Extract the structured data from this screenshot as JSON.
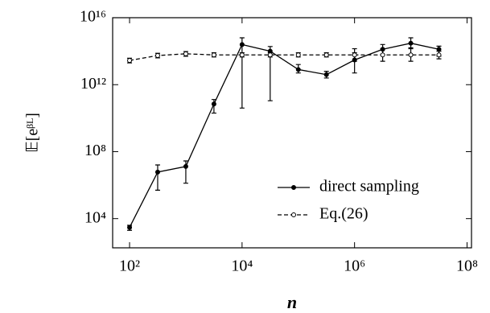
{
  "chart_data": {
    "type": "line",
    "xlabel": "n",
    "ylabel": "𝔼[eᵝᴸ]",
    "xscale": "log",
    "yscale": "log",
    "xlim": [
      50,
      120000000
    ],
    "ylim": [
      180,
      10000000000000000
    ],
    "xticks": [
      {
        "value": 100,
        "label": "10²"
      },
      {
        "value": 10000,
        "label": "10⁴"
      },
      {
        "value": 1000000,
        "label": "10⁶"
      },
      {
        "value": 100000000,
        "label": "10⁸"
      }
    ],
    "yticks": [
      {
        "value": 10000,
        "label": "10⁴"
      },
      {
        "value": 100000000,
        "label": "10⁸"
      },
      {
        "value": 1000000000000,
        "label": "10¹²"
      },
      {
        "value": 10000000000000000,
        "label": "10¹⁶"
      }
    ],
    "legend": "lower right",
    "x": [
      100,
      316,
      1000,
      3162,
      10000,
      31623,
      100000,
      316228,
      1000000,
      3162278,
      10000000,
      31622777
    ],
    "series": [
      {
        "name": "direct sampling",
        "color": "#000000",
        "line_style": "solid",
        "marker": "filled",
        "values": [
          3000,
          6000000,
          13000000,
          70000000000,
          250000000000000,
          100000000000000,
          8000000000000,
          4000000000000,
          30000000000000,
          130000000000000,
          300000000000000,
          130000000000000
        ],
        "lower": [
          2000,
          500000,
          1300000,
          20000000000,
          40000000000,
          110000000000,
          5000000000000,
          2500000000000,
          5000000000000,
          63000000000000,
          160000000000000,
          50000000000000
        ],
        "upper": [
          4000,
          16000000,
          28000000,
          130000000000,
          630000000000000,
          190000000000000,
          16000000000000,
          6300000000000,
          80000000000000,
          250000000000000,
          630000000000000,
          200000000000000
        ]
      },
      {
        "name": "Eq.(26)",
        "color": "#000000",
        "line_style": "dashed",
        "marker": "open",
        "values": [
          28000000000000,
          55000000000000,
          70000000000000,
          60000000000000,
          60000000000000,
          60000000000000,
          60000000000000,
          60000000000000,
          60000000000000,
          60000000000000,
          60000000000000,
          60000000000000
        ],
        "lower": [
          20000000000000,
          40000000000000,
          50000000000000,
          45000000000000,
          45000000000000,
          45000000000000,
          45000000000000,
          45000000000000,
          25000000000000,
          25000000000000,
          25000000000000,
          35000000000000
        ],
        "upper": [
          38000000000000,
          75000000000000,
          95000000000000,
          80000000000000,
          80000000000000,
          80000000000000,
          80000000000000,
          80000000000000,
          140000000000000,
          140000000000000,
          140000000000000,
          100000000000000
        ]
      }
    ]
  }
}
